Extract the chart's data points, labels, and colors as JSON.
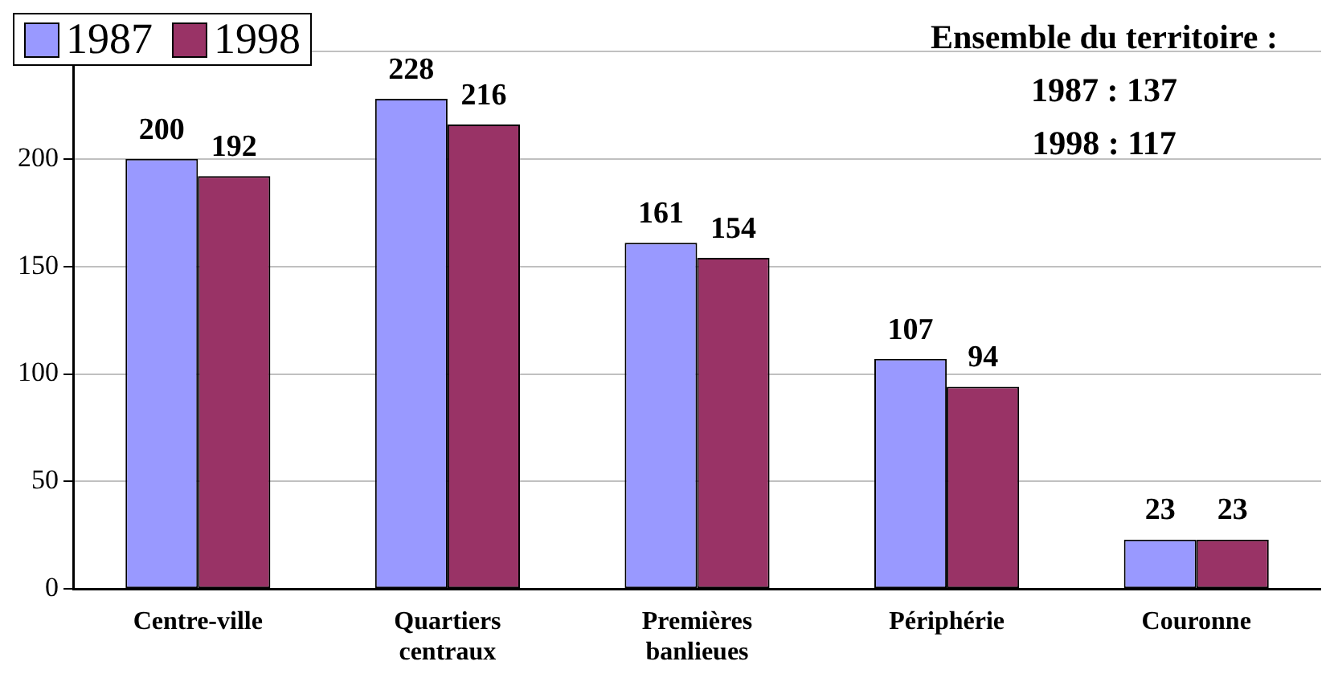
{
  "chart_data": {
    "type": "bar",
    "categories": [
      "Centre-ville",
      "Quartiers centraux",
      "Premières banlieues",
      "Périphérie",
      "Couronne"
    ],
    "series": [
      {
        "name": "1987",
        "color": "#9999ff",
        "values": [
          200,
          228,
          161,
          107,
          23
        ]
      },
      {
        "name": "1998",
        "color": "#993366",
        "values": [
          192,
          216,
          154,
          94,
          23
        ]
      }
    ],
    "ylim": [
      0,
      250
    ],
    "yticks": [
      0,
      50,
      100,
      150,
      200,
      {
        "value": 250,
        "label": null
      }
    ],
    "grid": "y",
    "legend": "top left",
    "data_labels": true,
    "annotations": [
      "Ensemble du territoire :",
      "1987 : 137",
      "1998 : 117"
    ]
  }
}
